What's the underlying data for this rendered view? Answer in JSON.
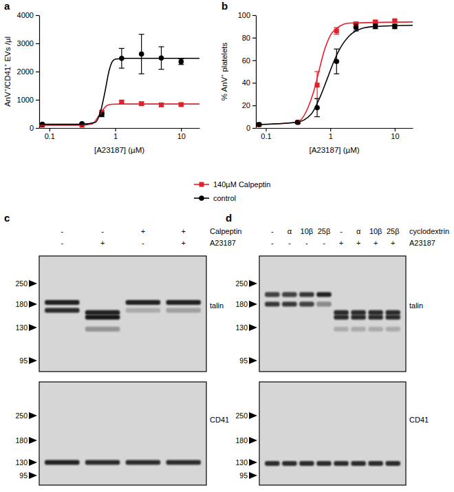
{
  "chart_data": [
    {
      "type": "line",
      "title": "a",
      "xlabel": "[A23187] (µM)",
      "ylabel": "AnV⁺/CD41⁺ EVs /µl",
      "x": [
        0.078,
        0.3125,
        0.625,
        1.25,
        2.5,
        5,
        10
      ],
      "xlim": [
        0.07,
        19
      ],
      "xticks": [
        0.1,
        1,
        10
      ],
      "log": "x",
      "ylim": [
        0,
        4000
      ],
      "yticks": [
        0,
        1000,
        2000,
        3000,
        4000
      ],
      "legend": "bottom",
      "series": [
        {
          "name": "140µM Calpeptin",
          "type": "scatter",
          "marker": "square",
          "color": "#e0212b",
          "values": [
            100,
            100,
            560,
            920,
            860,
            820,
            830
          ],
          "errors": [
            20,
            20,
            60,
            50,
            60,
            50,
            40
          ]
        },
        {
          "name": "control",
          "type": "scatter",
          "marker": "circle",
          "color": "#000000",
          "values": [
            130,
            150,
            480,
            2470,
            2620,
            2480,
            2350
          ],
          "errors": [
            20,
            20,
            80,
            350,
            700,
            400,
            100
          ]
        },
        {
          "type": "line",
          "line_style": "solid",
          "color": "#e0212b",
          "x": [
            0.07,
            0.3,
            0.45,
            0.55,
            0.65,
            0.75,
            0.9,
            1.2,
            19
          ],
          "values": [
            100,
            100,
            150,
            400,
            650,
            800,
            840,
            850,
            850
          ]
        },
        {
          "type": "line",
          "line_style": "solid",
          "color": "#000000",
          "x": [
            0.07,
            0.3,
            0.5,
            0.6,
            0.7,
            0.8,
            0.9,
            1.0,
            1.5,
            19
          ],
          "values": [
            130,
            130,
            200,
            600,
            1300,
            2000,
            2350,
            2440,
            2470,
            2470
          ]
        }
      ]
    },
    {
      "type": "line",
      "title": "b",
      "xlabel": "[A23187] (µM)",
      "ylabel": "% AnV⁺ platelets",
      "x": [
        0.078,
        0.3125,
        0.625,
        1.25,
        2.5,
        5,
        10
      ],
      "xlim": [
        0.07,
        19
      ],
      "xticks": [
        0.1,
        1,
        10
      ],
      "log": "x",
      "ylim": [
        0,
        100
      ],
      "yticks": [
        0,
        20,
        40,
        60,
        80,
        100
      ],
      "series": [
        {
          "type": "scatter",
          "marker": "square",
          "color": "#e0212b",
          "values": [
            3,
            5,
            38,
            86,
            92,
            94,
            95
          ],
          "errors": [
            1,
            1,
            12,
            3,
            2,
            1,
            1
          ]
        },
        {
          "type": "scatter",
          "marker": "circle",
          "color": "#000000",
          "values": [
            3,
            5,
            18,
            59,
            89,
            90,
            90
          ],
          "errors": [
            1,
            1,
            8,
            11,
            3,
            2,
            2
          ]
        },
        {
          "type": "line",
          "line_style": "solid",
          "color": "#e0212b",
          "x": [
            0.07,
            0.3,
            0.45,
            0.55,
            0.65,
            0.8,
            1,
            1.3,
            2,
            19
          ],
          "values": [
            3,
            5,
            18,
            32,
            48,
            68,
            82,
            89,
            93,
            94
          ]
        },
        {
          "type": "line",
          "line_style": "solid",
          "color": "#000000",
          "x": [
            0.07,
            0.3,
            0.5,
            0.7,
            0.9,
            1.1,
            1.4,
            2,
            3,
            5,
            19
          ],
          "values": [
            3,
            5,
            12,
            28,
            44,
            57,
            70,
            82,
            88,
            90,
            91
          ]
        }
      ]
    }
  ],
  "blots": [
    {
      "panel": "c",
      "header": [
        {
          "label": "Calpeptin",
          "values": [
            "-",
            "-",
            "+",
            "+"
          ]
        },
        {
          "label": "A23187",
          "values": [
            "-",
            "+",
            "-",
            "+"
          ]
        }
      ],
      "rows": [
        {
          "label": "talin",
          "markers": [
            250,
            180,
            130,
            95
          ],
          "lanes": [
            [
              {
                "kda": 185,
                "intensity": 0.9
              },
              {
                "kda": 165,
                "intensity": 0.85
              }
            ],
            [
              {
                "kda": 160,
                "intensity": 0.9
              },
              {
                "kda": 150,
                "intensity": 0.95
              },
              {
                "kda": 128,
                "intensity": 0.35
              }
            ],
            [
              {
                "kda": 185,
                "intensity": 0.9
              },
              {
                "kda": 165,
                "intensity": 0.2
              }
            ],
            [
              {
                "kda": 185,
                "intensity": 0.9
              },
              {
                "kda": 165,
                "intensity": 0.25
              }
            ]
          ]
        },
        {
          "label": "CD41",
          "markers": [
            250,
            180,
            130,
            95
          ],
          "lanes": [
            [
              {
                "kda": 130,
                "intensity": 0.9
              }
            ],
            [
              {
                "kda": 130,
                "intensity": 0.85
              }
            ],
            [
              {
                "kda": 130,
                "intensity": 0.85
              }
            ],
            [
              {
                "kda": 130,
                "intensity": 0.85
              }
            ]
          ]
        }
      ]
    },
    {
      "panel": "d",
      "header": [
        {
          "label": "cyclodextrin",
          "values": [
            "-",
            "α",
            "10β",
            "25β",
            "-",
            "α",
            "10β",
            "25β"
          ]
        },
        {
          "label": "A23187",
          "values": [
            "-",
            "-",
            "-",
            "-",
            "+",
            "+",
            "+",
            "+"
          ]
        }
      ],
      "rows": [
        {
          "label": "talin",
          "markers": [
            250,
            180,
            130,
            95
          ],
          "lanes": [
            [
              {
                "kda": 210,
                "intensity": 0.75
              },
              {
                "kda": 180,
                "intensity": 0.8
              }
            ],
            [
              {
                "kda": 210,
                "intensity": 0.75
              },
              {
                "kda": 180,
                "intensity": 0.8
              }
            ],
            [
              {
                "kda": 210,
                "intensity": 0.8
              },
              {
                "kda": 180,
                "intensity": 0.75
              }
            ],
            [
              {
                "kda": 210,
                "intensity": 0.9
              },
              {
                "kda": 180,
                "intensity": 0.4
              }
            ],
            [
              {
                "kda": 160,
                "intensity": 0.85
              },
              {
                "kda": 150,
                "intensity": 0.85
              },
              {
                "kda": 128,
                "intensity": 0.2
              }
            ],
            [
              {
                "kda": 160,
                "intensity": 0.85
              },
              {
                "kda": 150,
                "intensity": 0.85
              },
              {
                "kda": 128,
                "intensity": 0.2
              }
            ],
            [
              {
                "kda": 160,
                "intensity": 0.85
              },
              {
                "kda": 150,
                "intensity": 0.85
              },
              {
                "kda": 128,
                "intensity": 0.2
              }
            ],
            [
              {
                "kda": 160,
                "intensity": 0.85
              },
              {
                "kda": 150,
                "intensity": 0.85
              },
              {
                "kda": 128,
                "intensity": 0.2
              }
            ]
          ]
        },
        {
          "label": "CD41",
          "markers": [
            250,
            180,
            130,
            95
          ],
          "lanes": [
            [
              {
                "kda": 127,
                "intensity": 0.85
              }
            ],
            [
              {
                "kda": 127,
                "intensity": 0.85
              }
            ],
            [
              {
                "kda": 127,
                "intensity": 0.85
              }
            ],
            [
              {
                "kda": 127,
                "intensity": 0.85
              }
            ],
            [
              {
                "kda": 127,
                "intensity": 0.85
              }
            ],
            [
              {
                "kda": 127,
                "intensity": 0.85
              }
            ],
            [
              {
                "kda": 127,
                "intensity": 0.85
              }
            ],
            [
              {
                "kda": 127,
                "intensity": 0.85
              }
            ]
          ]
        }
      ]
    }
  ]
}
